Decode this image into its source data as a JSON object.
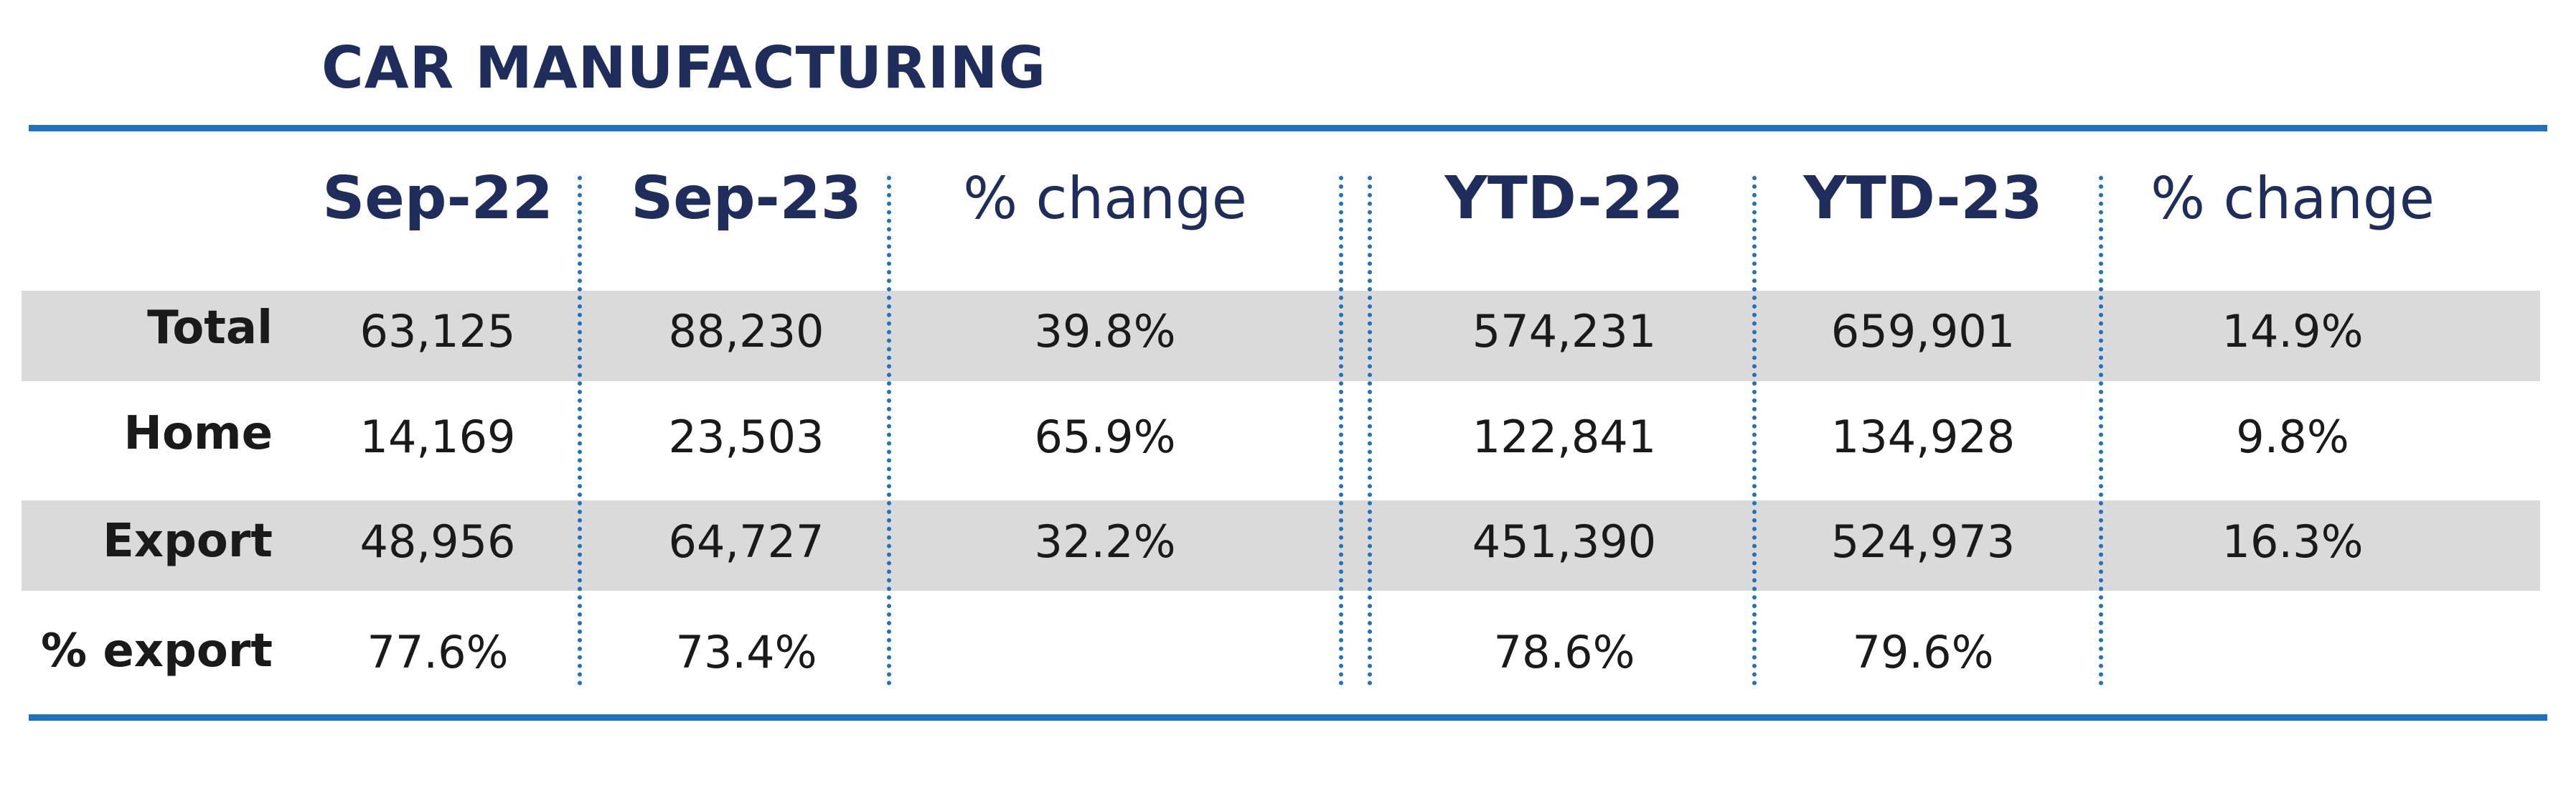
{
  "title": "CAR MANUFACTURING",
  "colors": {
    "title": "#1f2d5c",
    "accent_rule": "#1f72bf",
    "band": "#dadada"
  },
  "table": {
    "headers": [
      "Sep-22",
      "Sep-23",
      "% change",
      "YTD-22",
      "YTD-23",
      "% change"
    ],
    "rows": [
      {
        "label": "Total",
        "values": [
          "63,125",
          "88,230",
          "39.8%",
          "574,231",
          "659,901",
          "14.9%"
        ]
      },
      {
        "label": "Home",
        "values": [
          "14,169",
          "23,503",
          "65.9%",
          "122,841",
          "134,928",
          "9.8%"
        ]
      },
      {
        "label": "Export",
        "values": [
          "48,956",
          "64,727",
          "32.2%",
          "451,390",
          "524,973",
          "16.3%"
        ]
      },
      {
        "label": "% export",
        "values": [
          "77.6%",
          "73.4%",
          "",
          "78.6%",
          "79.6%",
          ""
        ]
      }
    ]
  }
}
